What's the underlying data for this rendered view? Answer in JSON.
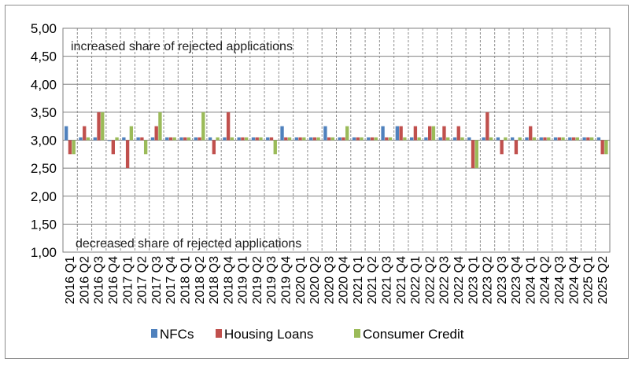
{
  "chart_data": {
    "type": "bar",
    "title": "",
    "xlabel": "",
    "ylabel": "",
    "ylim": [
      1.0,
      5.0
    ],
    "yticks": [
      "1,00",
      "1,50",
      "2,00",
      "2,50",
      "3,00",
      "3,50",
      "4,00",
      "4,50",
      "5,00"
    ],
    "baseline": 3.0,
    "grid": true,
    "legend_position": "bottom",
    "annotations": {
      "top": "increased  share of rejected applications",
      "bottom": "decreased share of rejected applications"
    },
    "categories": [
      "2016 Q1",
      "2016 Q2",
      "2016 Q3",
      "2016 Q4",
      "2017 Q1",
      "2017 Q2",
      "2017 Q3",
      "2017 Q4",
      "2018 Q1",
      "2018 Q2",
      "2018 Q3",
      "2018 Q4",
      "2019 Q1",
      "2019 Q2",
      "2019 Q3",
      "2019 Q4",
      "2020 Q1",
      "2020 Q2",
      "2020 Q3",
      "2020 Q4",
      "2021 Q1",
      "2021 Q2",
      "2021 Q3",
      "2021 Q4",
      "2022 Q1",
      "2022 Q2",
      "2022 Q3",
      "2022 Q4",
      "2023 Q1",
      "2023 Q2",
      "2023 Q3",
      "2023 Q4",
      "2024 Q1",
      "2024 Q2",
      "2024 Q3",
      "2024 Q4",
      "2025 Q1",
      "2025 Q2"
    ],
    "series": [
      {
        "name": "NFCs",
        "color": "#4f81bd",
        "values": [
          3.25,
          3.05,
          3.05,
          3.0,
          3.05,
          3.05,
          3.05,
          3.05,
          3.05,
          3.05,
          3.05,
          3.05,
          3.05,
          3.05,
          3.05,
          3.25,
          3.05,
          3.05,
          3.25,
          3.05,
          3.05,
          3.05,
          3.25,
          3.25,
          3.05,
          3.05,
          3.05,
          3.05,
          3.05,
          3.05,
          3.05,
          3.05,
          3.05,
          3.05,
          3.05,
          3.05,
          3.05,
          3.05
        ]
      },
      {
        "name": "Housing Loans",
        "color": "#c0504d",
        "values": [
          2.75,
          3.25,
          3.5,
          2.75,
          2.5,
          3.05,
          3.25,
          3.05,
          3.05,
          3.05,
          2.75,
          3.5,
          3.05,
          3.05,
          3.05,
          3.05,
          3.05,
          3.05,
          3.05,
          3.05,
          3.05,
          3.05,
          3.05,
          3.25,
          3.25,
          3.25,
          3.25,
          3.25,
          2.5,
          3.5,
          2.75,
          2.75,
          3.25,
          3.05,
          3.05,
          3.05,
          3.05,
          2.75
        ]
      },
      {
        "name": "Consumer Credit",
        "color": "#9bbb59",
        "values": [
          2.75,
          3.05,
          3.5,
          3.05,
          3.25,
          2.75,
          3.5,
          3.05,
          3.05,
          3.5,
          3.05,
          3.05,
          3.05,
          3.05,
          2.75,
          3.05,
          3.05,
          3.05,
          3.05,
          3.25,
          3.05,
          3.05,
          3.05,
          3.05,
          3.05,
          3.25,
          3.05,
          3.05,
          2.5,
          3.05,
          3.05,
          3.05,
          3.05,
          3.05,
          3.05,
          3.05,
          3.05,
          2.75
        ]
      }
    ]
  }
}
